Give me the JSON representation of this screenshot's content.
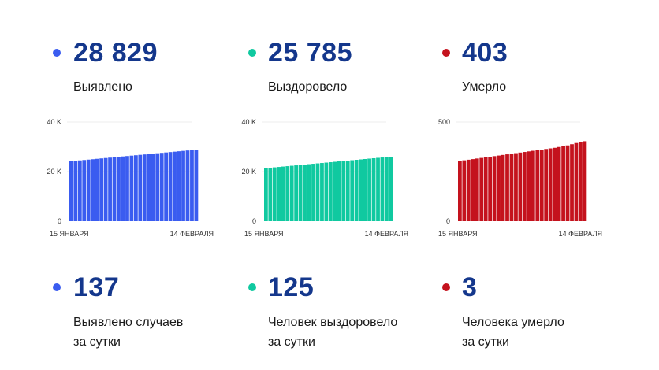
{
  "colors": {
    "detected": "#3a5cf0",
    "recovered": "#10c9a0",
    "died": "#c4121d",
    "number": "#14378c"
  },
  "stats": [
    {
      "key": "detected",
      "total": "28 829",
      "total_label": "Выявлено",
      "daily": "137",
      "daily_label_1": "Выявлено случаев",
      "daily_label_2": "за сутки"
    },
    {
      "key": "recovered",
      "total": "25 785",
      "total_label": "Выздоровело",
      "daily": "125",
      "daily_label_1": "Человек выздоровело",
      "daily_label_2": "за сутки"
    },
    {
      "key": "died",
      "total": "403",
      "total_label": "Умерло",
      "daily": "3",
      "daily_label_1": "Человека умерло",
      "daily_label_2": "за сутки"
    }
  ],
  "chart_data": [
    {
      "type": "bar",
      "color": "#3a5cf0",
      "ylim": [
        0,
        40000
      ],
      "ytick_values": [
        0,
        20000,
        40000
      ],
      "ytick_labels": [
        "0",
        "20 K",
        "40 K"
      ],
      "xtick_labels": [
        "15 ЯНВАРЯ",
        "14 ФЕВРАЛЯ"
      ],
      "x_start": "15 января",
      "x_end": "14 февраля",
      "values": [
        24200,
        24360,
        24520,
        24680,
        24840,
        25000,
        25160,
        25320,
        25480,
        25640,
        25800,
        25960,
        26120,
        26280,
        26440,
        26600,
        26760,
        26920,
        27080,
        27240,
        27400,
        27560,
        27720,
        27880,
        28040,
        28200,
        28360,
        28520,
        28680,
        28829
      ]
    },
    {
      "type": "bar",
      "color": "#10c9a0",
      "ylim": [
        0,
        40000
      ],
      "ytick_values": [
        0,
        20000,
        40000
      ],
      "ytick_labels": [
        "0",
        "20 K",
        "40 K"
      ],
      "xtick_labels": [
        "15 ЯНВАРЯ",
        "14 ФЕВРАЛЯ"
      ],
      "x_start": "15 января",
      "x_end": "14 февраля",
      "values": [
        21400,
        21560,
        21720,
        21880,
        22040,
        22200,
        22360,
        22520,
        22680,
        22840,
        23000,
        23160,
        23320,
        23480,
        23640,
        23800,
        23960,
        24120,
        24280,
        24440,
        24600,
        24760,
        24920,
        25080,
        25240,
        25400,
        25560,
        25700,
        25740,
        25785
      ]
    },
    {
      "type": "bar",
      "color": "#c4121d",
      "ylim": [
        0,
        500
      ],
      "ytick_values": [
        0,
        500
      ],
      "ytick_labels": [
        "0",
        "500"
      ],
      "xtick_labels": [
        "15 ЯНВАРЯ",
        "14 ФЕВРАЛЯ"
      ],
      "x_start": "15 января",
      "x_end": "14 февраля",
      "values": [
        305,
        307,
        310,
        313,
        316,
        319,
        322,
        325,
        328,
        331,
        334,
        337,
        340,
        343,
        346,
        349,
        352,
        355,
        358,
        361,
        364,
        367,
        370,
        374,
        378,
        382,
        388,
        394,
        399,
        403
      ]
    }
  ]
}
